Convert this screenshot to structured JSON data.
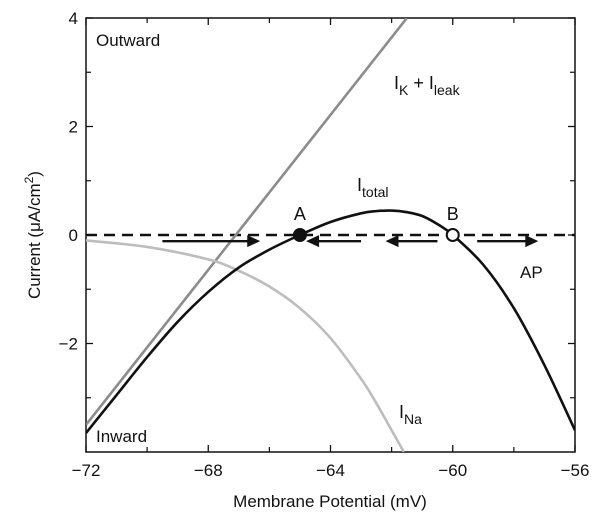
{
  "chart_data": {
    "type": "line",
    "xlabel": "Membrane Potential (mV)",
    "ylabel": {
      "main": "Current (",
      "mu": "μ",
      "unit": "A/cm",
      "sup": "2",
      "close": ")"
    },
    "xlim": [
      -72,
      -56
    ],
    "ylim": [
      -4,
      4
    ],
    "x_ticks": [
      -72,
      -68,
      -64,
      -60,
      -56
    ],
    "x_tick_labels": [
      "−72",
      "−68",
      "−64",
      "−60",
      "−56"
    ],
    "y_ticks": [
      4,
      2,
      0,
      -2
    ],
    "y_tick_labels": [
      "4",
      "2",
      "0",
      "−2"
    ],
    "grid": false,
    "colors": {
      "total": "#111111",
      "k_leak": "#8c8c8c",
      "na": "#bdbdbd",
      "zero_line": "#111111"
    },
    "series": [
      {
        "key": "k_leak",
        "x": [
          -72,
          -61.5
        ],
        "y": [
          -3.5,
          4.0
        ]
      },
      {
        "key": "na",
        "x": [
          -72,
          -70,
          -68,
          -67,
          -66,
          -65,
          -64,
          -63,
          -62.5,
          -62,
          -61.6
        ],
        "y": [
          -0.1,
          -0.22,
          -0.45,
          -0.66,
          -0.95,
          -1.35,
          -1.9,
          -2.65,
          -3.1,
          -3.6,
          -4.0
        ]
      },
      {
        "key": "total",
        "x": [
          -72,
          -71,
          -70,
          -69,
          -68,
          -67,
          -66,
          -65,
          -64,
          -63,
          -62.5,
          -62,
          -61.5,
          -61,
          -60.5,
          -60,
          -59,
          -58,
          -57,
          -56
        ],
        "y": [
          -3.65,
          -2.95,
          -2.25,
          -1.6,
          -1.05,
          -0.6,
          -0.27,
          0,
          0.24,
          0.4,
          0.44,
          0.45,
          0.42,
          0.35,
          0.2,
          0,
          -0.55,
          -1.35,
          -2.4,
          -3.6
        ]
      }
    ],
    "fixed_points": [
      {
        "label": "A",
        "x": -65,
        "y": 0,
        "filled": true
      },
      {
        "label": "B",
        "x": -60,
        "y": 0,
        "filled": false
      }
    ],
    "flow_arrows": [
      {
        "x_from": -69.5,
        "x_to": -66.3,
        "y": -0.15
      },
      {
        "x_from": -63.0,
        "x_to": -64.8,
        "y": -0.15
      },
      {
        "x_from": -60.5,
        "x_to": -62.2,
        "y": -0.15
      },
      {
        "x_from": -59.2,
        "x_to": -57.2,
        "y": -0.15
      }
    ],
    "annotations": {
      "outward": "Outward",
      "inward": "Inward",
      "ap": "AP",
      "total_label": {
        "main": "I",
        "sub": "total"
      },
      "k_leak_label": {
        "i1": "I",
        "s1": "K",
        "plus": " + ",
        "i2": "I",
        "s2": "leak"
      },
      "na_label": {
        "main": "I",
        "sub": "Na"
      }
    }
  }
}
